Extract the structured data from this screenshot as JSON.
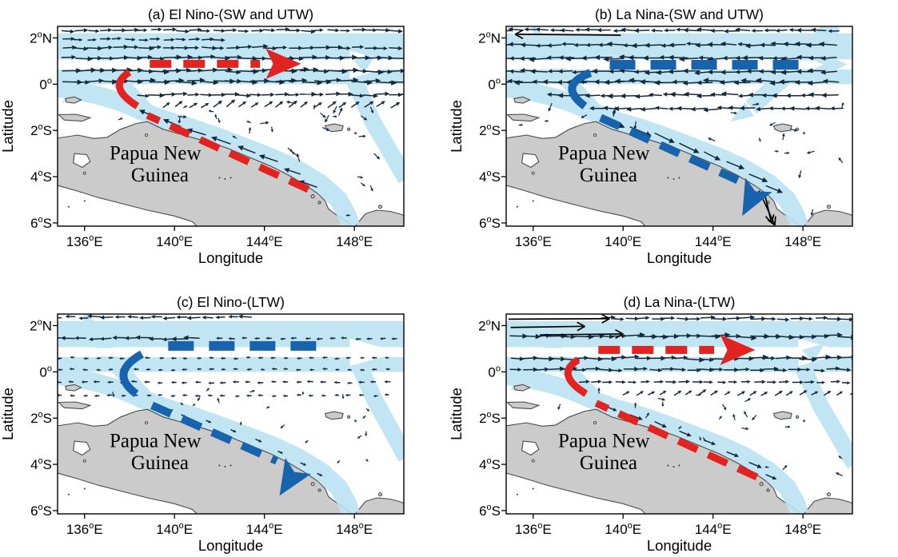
{
  "colors": {
    "light_blue": "#C2E5F4",
    "red": "#E3231F",
    "dark_blue": "#1763AE",
    "land": "#CBCBCB",
    "coastline": "#4A4A4A",
    "quiver": "#14283C",
    "frame": "#000000",
    "text": "#000000",
    "sea": "#FFFFFF"
  },
  "axes": {
    "xlabel": "Longitude",
    "ylabel": "Latitude",
    "xticks": [
      {
        "value": 136,
        "label": "136",
        "deg": "o",
        "suffix": "E"
      },
      {
        "value": 140,
        "label": "140",
        "deg": "o",
        "suffix": "E"
      },
      {
        "value": 144,
        "label": "144",
        "deg": "o",
        "suffix": "E"
      },
      {
        "value": 148,
        "label": "148",
        "deg": "o",
        "suffix": "E"
      }
    ],
    "yticks": [
      {
        "value": 2,
        "label": "2",
        "deg": "o",
        "suffix": "N"
      },
      {
        "value": 0,
        "label": "0",
        "deg": "o",
        "suffix": ""
      },
      {
        "value": -2,
        "label": "2",
        "deg": "o",
        "suffix": "S"
      },
      {
        "value": -4,
        "label": "4",
        "deg": "o",
        "suffix": "S"
      },
      {
        "value": -6,
        "label": "6",
        "deg": "o",
        "suffix": "S"
      }
    ]
  },
  "land_label": [
    "Papua New",
    "Guinea"
  ],
  "panels": [
    {
      "key": "a",
      "title": "(a) El Nino-(SW and UTW)",
      "dash": {
        "color_key": "red",
        "direction": "eastward"
      },
      "quiver": {
        "zonal": "east",
        "coastal": "northwestward",
        "strength": "strong"
      }
    },
    {
      "key": "b",
      "title": "(b) La Nina-(SW and UTW)",
      "dash": {
        "color_key": "dark_blue",
        "direction": "coastward"
      },
      "quiver": {
        "zonal": "west",
        "coastal": "southeastward",
        "strength": "strong"
      }
    },
    {
      "key": "c",
      "title": "(c) El Nino-(LTW)",
      "dash": {
        "color_key": "dark_blue",
        "direction": "coastward"
      },
      "quiver": {
        "zonal": "west",
        "coastal": "weak",
        "strength": "weak"
      }
    },
    {
      "key": "d",
      "title": "(d) La Nina-(LTW)",
      "dash": {
        "color_key": "red",
        "direction": "eastward"
      },
      "quiver": {
        "zonal": "east",
        "coastal": "southeastward",
        "strength": "moderate"
      }
    }
  ],
  "chart_data": {
    "type": "other",
    "subtype": "schematic_ocean_current_map_grid",
    "grid": "2x2",
    "shared_axes": {
      "xlabel": "Longitude",
      "ylabel": "Latitude",
      "xtick_labels": [
        "136°E",
        "140°E",
        "144°E",
        "148°E"
      ],
      "ytick_labels": [
        "2°N",
        "0°",
        "2°S",
        "4°S",
        "6°S"
      ],
      "lon_range_deg_e": [
        134.8,
        150.2
      ],
      "lat_range_deg": [
        -6.2,
        2.5
      ]
    },
    "land_label": "Papua New Guinea",
    "background_band_meaning": "broad light-blue bands mark the mean coastal and equatorial current pathways",
    "panels": [
      {
        "label": "(a)",
        "condition": "El Nino",
        "layer": "SW and UTW",
        "dashed_arrow_color": "red",
        "dashed_arrow_route": "northwestward along the Papua New Guinea coast, turning eastward along ~1°N",
        "dashed_arrow_head": "points east near 144°E, 1°N",
        "vector_field": "eastward equatorial arrows, northwestward coastal arrows"
      },
      {
        "label": "(b)",
        "condition": "La Nina",
        "layer": "SW and UTW",
        "dashed_arrow_color": "blue",
        "dashed_arrow_route": "westward along ~1°N, turning southeastward along the coast",
        "dashed_arrow_head": "points southeast near 146°E, 5°S",
        "vector_field": "westward equatorial arrows, southeastward coastal arrows"
      },
      {
        "label": "(c)",
        "condition": "El Nino",
        "layer": "LTW",
        "dashed_arrow_color": "blue",
        "dashed_arrow_route": "westward along ~1°N, turning southeastward along the coast",
        "dashed_arrow_head": "points southeast near 145°E, 4.5°S",
        "vector_field": "weak westward arrows, mostly small vectors"
      },
      {
        "label": "(d)",
        "condition": "La Nina",
        "layer": "LTW",
        "dashed_arrow_color": "red",
        "dashed_arrow_route": "northwestward along the coast, turning eastward along ~1°N",
        "dashed_arrow_head": "points east near 145°E, 1°N",
        "vector_field": "eastward equatorial arrows, strong arrows at top-left"
      }
    ]
  }
}
